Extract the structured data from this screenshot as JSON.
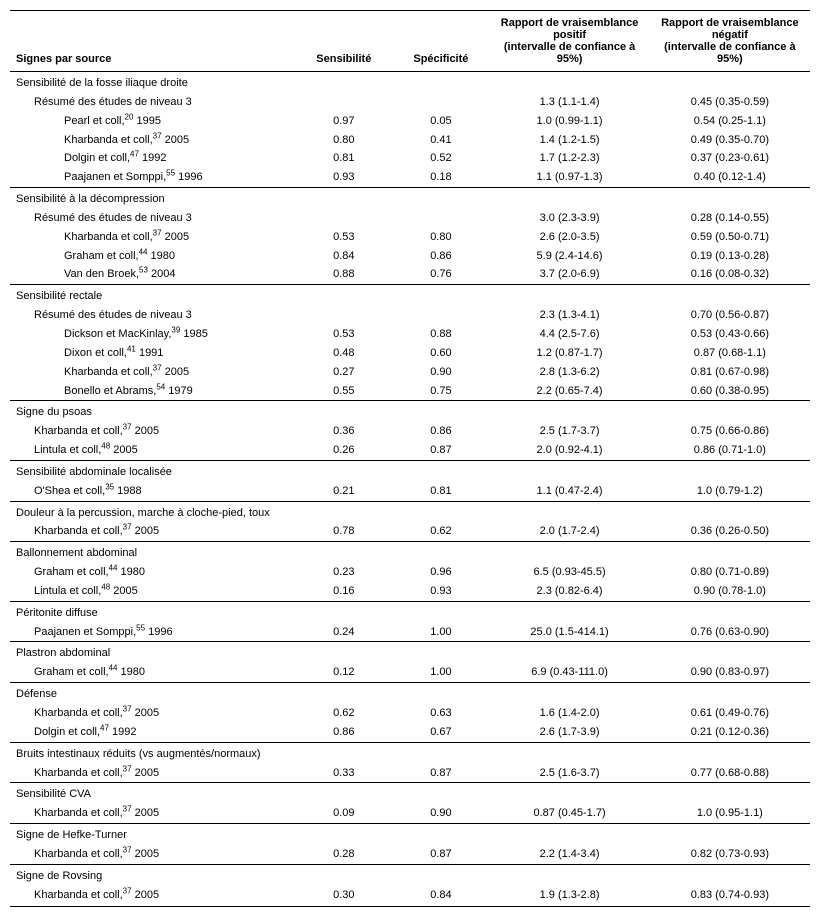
{
  "headers": {
    "h1": "Signes par source",
    "h2": "Sensibilité",
    "h3": "Spécificité",
    "h4a": "Rapport de vraisemblance positif",
    "h4b": "(intervalle de confiance à 95%)",
    "h5a": "Rapport de vraisemblance négatif",
    "h5b": "(intervalle de confiance à 95%)"
  },
  "sections": [
    {
      "title": "Sensibilité de la fosse iliaque droite",
      "rows": [
        {
          "label": "Résumé des études de niveau 3",
          "indent": 1,
          "sens": "",
          "spec": "",
          "pos": "1.3 (1.1-1.4)",
          "neg": "0.45 (0.35-0.59)"
        },
        {
          "label": "Pearl et coll,",
          "sup": "20",
          "after": " 1995",
          "indent": 2,
          "sens": "0.97",
          "spec": "0.05",
          "pos": "1.0 (0.99-1.1)",
          "neg": "0.54 (0.25-1.1)"
        },
        {
          "label": "Kharbanda et coll,",
          "sup": "37",
          "after": " 2005",
          "indent": 2,
          "sens": "0.80",
          "spec": "0.41",
          "pos": "1.4 (1.2-1.5)",
          "neg": "0.49 (0.35-0.70)"
        },
        {
          "label": "Dolgin et coll,",
          "sup": "47",
          "after": " 1992",
          "indent": 2,
          "sens": "0.81",
          "spec": "0.52",
          "pos": "1.7 (1.2-2.3)",
          "neg": "0.37 (0.23-0.61)"
        },
        {
          "label": "Paajanen et Somppi,",
          "sup": "55",
          "after": " 1996",
          "indent": 2,
          "sens": "0.93",
          "spec": "0.18",
          "pos": "1.1 (0.97-1.3)",
          "neg": "0.40 (0.12-1.4)"
        }
      ]
    },
    {
      "title": "Sensibilité à la décompression",
      "rows": [
        {
          "label": "Résumé des études de niveau 3",
          "indent": 1,
          "sens": "",
          "spec": "",
          "pos": "3.0 (2.3-3.9)",
          "neg": "0.28 (0.14-0.55)"
        },
        {
          "label": "Kharbanda et coll,",
          "sup": "37",
          "after": " 2005",
          "indent": 2,
          "sens": "0.53",
          "spec": "0.80",
          "pos": "2.6 (2.0-3.5)",
          "neg": "0.59 (0.50-0.71)"
        },
        {
          "label": "Graham et coll,",
          "sup": "44",
          "after": " 1980",
          "indent": 2,
          "sens": "0.84",
          "spec": "0.86",
          "pos": "5.9 (2.4-14.6)",
          "neg": "0.19 (0.13-0.28)"
        },
        {
          "label": "Van den Broek,",
          "sup": "53",
          "after": " 2004",
          "indent": 2,
          "sens": "0.88",
          "spec": "0.76",
          "pos": "3.7 (2.0-6.9)",
          "neg": "0.16 (0.08-0.32)"
        }
      ]
    },
    {
      "title": "Sensibilité rectale",
      "rows": [
        {
          "label": "Résumé des études de niveau 3",
          "indent": 1,
          "sens": "",
          "spec": "",
          "pos": "2.3 (1.3-4.1)",
          "neg": "0.70 (0.56-0.87)"
        },
        {
          "label": "Dickson et MacKinlay,",
          "sup": "39",
          "after": " 1985",
          "indent": 2,
          "sens": "0.53",
          "spec": "0.88",
          "pos": "4.4 (2.5-7.6)",
          "neg": "0.53 (0.43-0.66)"
        },
        {
          "label": "Dixon et coll,",
          "sup": "41",
          "after": " 1991",
          "indent": 2,
          "sens": "0.48",
          "spec": "0.60",
          "pos": "1.2 (0.87-1.7)",
          "neg": "0.87 (0.68-1.1)"
        },
        {
          "label": "Kharbanda et coll,",
          "sup": "37",
          "after": " 2005",
          "indent": 2,
          "sens": "0.27",
          "spec": "0.90",
          "pos": "2.8 (1.3-6.2)",
          "neg": "0.81 (0.67-0.98)"
        },
        {
          "label": "Bonello et Abrams,",
          "sup": "54",
          "after": " 1979",
          "indent": 2,
          "sens": "0.55",
          "spec": "0.75",
          "pos": "2.2 (0.65-7.4)",
          "neg": "0.60 (0.38-0.95)"
        }
      ]
    },
    {
      "title": "Signe du psoas",
      "rows": [
        {
          "label": "Kharbanda et coll,",
          "sup": "37",
          "after": " 2005",
          "indent": 1,
          "sens": "0.36",
          "spec": "0.86",
          "pos": "2.5 (1.7-3.7)",
          "neg": "0.75 (0.66-0.86)"
        },
        {
          "label": "Lintula et coll,",
          "sup": "48",
          "after": " 2005",
          "indent": 1,
          "sens": "0.26",
          "spec": "0.87",
          "pos": "2.0 (0.92-4.1)",
          "neg": "0.86 (0.71-1.0)"
        }
      ]
    },
    {
      "title": "Sensibilité abdominale localisée",
      "rows": [
        {
          "label": "O'Shea et coll,",
          "sup": "35",
          "after": " 1988",
          "indent": 1,
          "sens": "0.21",
          "spec": "0.81",
          "pos": "1.1 (0.47-2.4)",
          "neg": "1.0 (0.79-1.2)"
        }
      ]
    },
    {
      "title": "Douleur à la percussion, marche à cloche-pied, toux",
      "rows": [
        {
          "label": "Kharbanda et coll,",
          "sup": "37",
          "after": " 2005",
          "indent": 1,
          "sens": "0.78",
          "spec": "0.62",
          "pos": "2.0 (1.7-2.4)",
          "neg": "0.36 (0.26-0.50)"
        }
      ]
    },
    {
      "title": "Ballonnement abdominal",
      "rows": [
        {
          "label": "Graham et coll,",
          "sup": "44",
          "after": " 1980",
          "indent": 1,
          "sens": "0.23",
          "spec": "0.96",
          "pos": "6.5 (0.93-45.5)",
          "neg": "0.80 (0.71-0.89)"
        },
        {
          "label": "Lintula et coll,",
          "sup": "48",
          "after": " 2005",
          "indent": 1,
          "sens": "0.16",
          "spec": "0.93",
          "pos": "2.3 (0.82-6.4)",
          "neg": "0.90 (0.78-1.0)"
        }
      ]
    },
    {
      "title": "Péritonite diffuse",
      "rows": [
        {
          "label": "Paajanen et Somppi,",
          "sup": "55",
          "after": " 1996",
          "indent": 1,
          "sens": "0.24",
          "spec": "1.00",
          "pos": "25.0 (1.5-414.1)",
          "neg": "0.76 (0.63-0.90)"
        }
      ]
    },
    {
      "title": "Plastron abdominal",
      "rows": [
        {
          "label": "Graham et coll,",
          "sup": "44",
          "after": " 1980",
          "indent": 1,
          "sens": "0.12",
          "spec": "1.00",
          "pos": "6.9 (0.43-111.0)",
          "neg": "0.90 (0.83-0.97)"
        }
      ]
    },
    {
      "title": "Défense",
      "rows": [
        {
          "label": "Kharbanda et coll,",
          "sup": "37",
          "after": " 2005",
          "indent": 1,
          "sens": "0.62",
          "spec": "0.63",
          "pos": "1.6 (1.4-2.0)",
          "neg": "0.61 (0.49-0.76)"
        },
        {
          "label": "Dolgin et coll,",
          "sup": "47",
          "after": " 1992",
          "indent": 1,
          "sens": "0.86",
          "spec": "0.67",
          "pos": "2.6 (1.7-3.9)",
          "neg": "0.21 (0.12-0.36)"
        }
      ]
    },
    {
      "title": "Bruits intestinaux réduits (vs augmentés/normaux)",
      "rows": [
        {
          "label": "Kharbanda et coll,",
          "sup": "37",
          "after": " 2005",
          "indent": 1,
          "sens": "0.33",
          "spec": "0.87",
          "pos": "2.5 (1.6-3.7)",
          "neg": "0.77 (0.68-0.88)"
        }
      ]
    },
    {
      "title": "Sensibilité CVA",
      "rows": [
        {
          "label": "Kharbanda et coll,",
          "sup": "37",
          "after": " 2005",
          "indent": 1,
          "sens": "0.09",
          "spec": "0.90",
          "pos": "0.87 (0.45-1.7)",
          "neg": "1.0 (0.95-1.1)"
        }
      ]
    },
    {
      "title": "Signe de Hefke-Turner",
      "rows": [
        {
          "label": "Kharbanda et coll,",
          "sup": "37",
          "after": " 2005",
          "indent": 1,
          "sens": "0.28",
          "spec": "0.87",
          "pos": "2.2 (1.4-3.4)",
          "neg": "0.82 (0.73-0.93)"
        }
      ]
    },
    {
      "title": "Signe de Rovsing",
      "rows": [
        {
          "label": "Kharbanda et coll,",
          "sup": "37",
          "after": " 2005",
          "indent": 1,
          "sens": "0.30",
          "spec": "0.84",
          "pos": "1.9 (1.3-2.8)",
          "neg": "0.83 (0.74-0.93)"
        }
      ]
    }
  ]
}
